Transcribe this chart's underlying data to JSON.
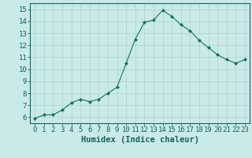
{
  "x": [
    0,
    1,
    2,
    3,
    4,
    5,
    6,
    7,
    8,
    9,
    10,
    11,
    12,
    13,
    14,
    15,
    16,
    17,
    18,
    19,
    20,
    21,
    22,
    23
  ],
  "y": [
    5.9,
    6.2,
    6.2,
    6.6,
    7.2,
    7.5,
    7.3,
    7.5,
    8.0,
    8.5,
    10.5,
    12.5,
    13.9,
    14.1,
    14.9,
    14.4,
    13.7,
    13.2,
    12.4,
    11.8,
    11.2,
    10.8,
    10.5,
    10.8
  ],
  "line_color": "#1a7060",
  "marker": "D",
  "marker_size": 2.0,
  "background_color": "#c8eae8",
  "grid_color": "#afd4d0",
  "xlabel": "Humidex (Indice chaleur)",
  "xlim": [
    -0.5,
    23.5
  ],
  "ylim": [
    5.5,
    15.5
  ],
  "yticks": [
    6,
    7,
    8,
    9,
    10,
    11,
    12,
    13,
    14,
    15
  ],
  "xticks": [
    0,
    1,
    2,
    3,
    4,
    5,
    6,
    7,
    8,
    9,
    10,
    11,
    12,
    13,
    14,
    15,
    16,
    17,
    18,
    19,
    20,
    21,
    22,
    23
  ],
  "tick_color": "#1a6060",
  "tick_fontsize": 6.5,
  "xlabel_fontsize": 7.5,
  "axis_color": "#1a6060",
  "linewidth": 0.8
}
